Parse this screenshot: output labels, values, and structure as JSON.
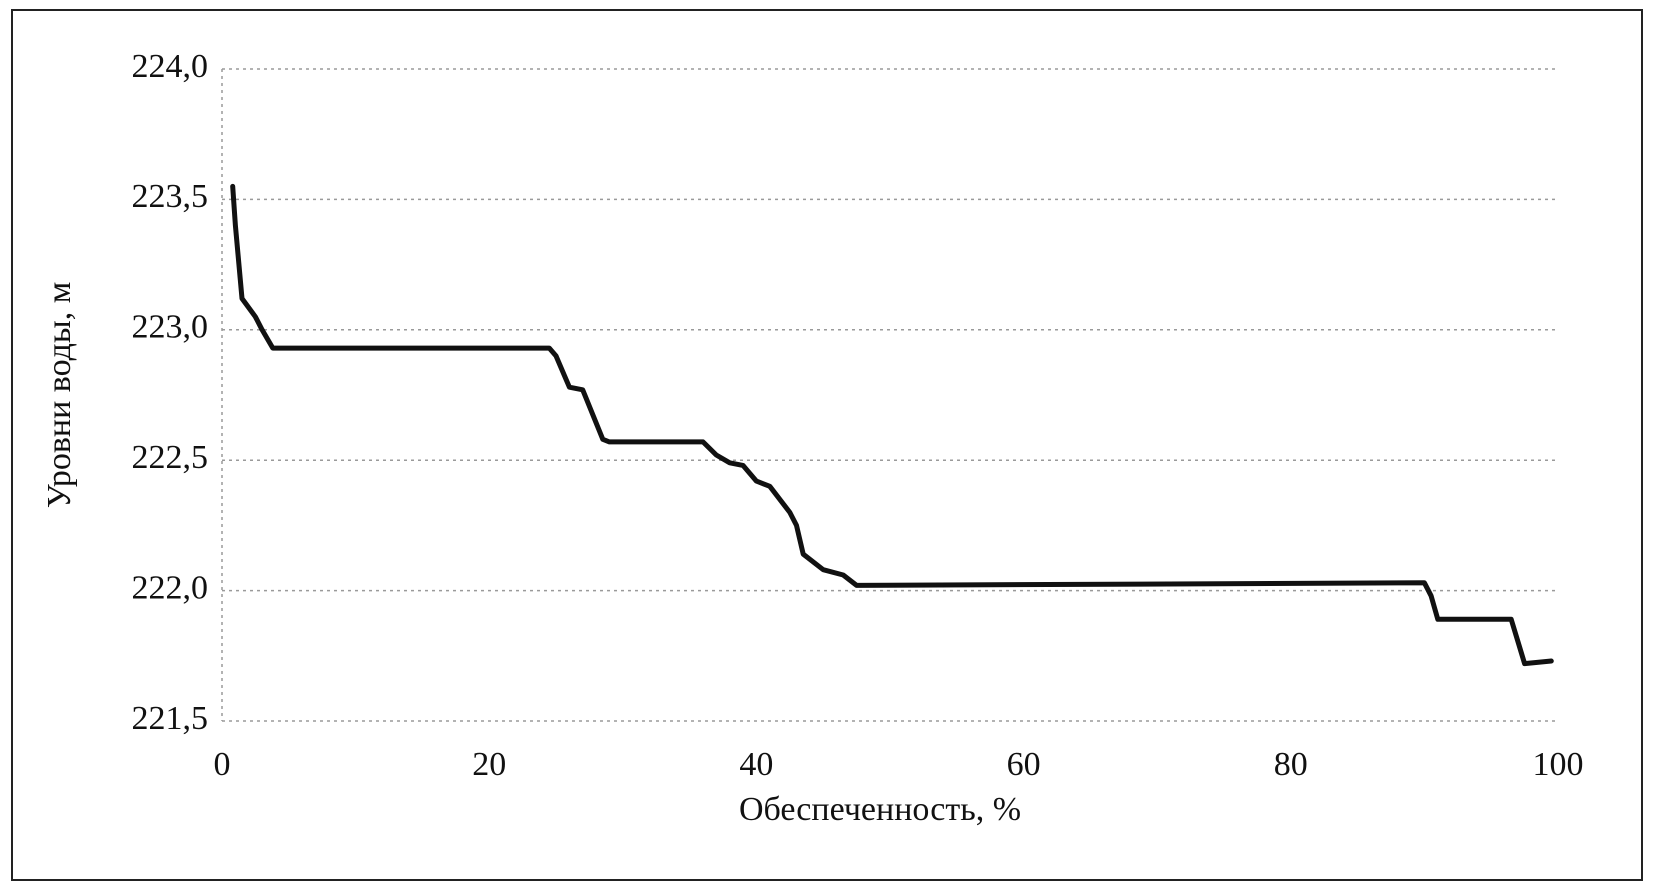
{
  "chart_data": {
    "type": "line",
    "x_label": "Обеспеченность, %",
    "y_label": "Уровни воды, м",
    "x": [
      0.8,
      1.0,
      1.5,
      2.5,
      3.0,
      3.8,
      24.5,
      25.0,
      26.0,
      27.0,
      28.5,
      29.0,
      36.0,
      37.0,
      38.0,
      39.0,
      40.0,
      41.0,
      42.5,
      43.0,
      43.5,
      45.0,
      46.5,
      47.5,
      90.0,
      90.5,
      91.0,
      96.5,
      97.5,
      99.5
    ],
    "values": [
      223.55,
      223.4,
      223.12,
      223.05,
      223.0,
      222.93,
      222.93,
      222.9,
      222.78,
      222.77,
      222.58,
      222.57,
      222.57,
      222.52,
      222.49,
      222.48,
      222.42,
      222.4,
      222.3,
      222.25,
      222.14,
      222.08,
      222.06,
      222.02,
      222.03,
      221.98,
      221.89,
      221.89,
      221.72,
      221.73
    ],
    "color": "#111111",
    "xlim": [
      0,
      100
    ],
    "xticks": [
      0,
      20,
      40,
      60,
      80,
      100
    ],
    "ylim": [
      221.5,
      224.0
    ],
    "yticks": [
      {
        "value": 221.5,
        "label": "221,5"
      },
      {
        "value": 222.0,
        "label": "222,0"
      },
      {
        "value": 222.5,
        "label": "222,5"
      },
      {
        "value": 223.0,
        "label": "223,0"
      },
      {
        "value": 223.5,
        "label": "223,5"
      },
      {
        "value": 224.0,
        "label": "224,0"
      }
    ],
    "grid": true
  }
}
